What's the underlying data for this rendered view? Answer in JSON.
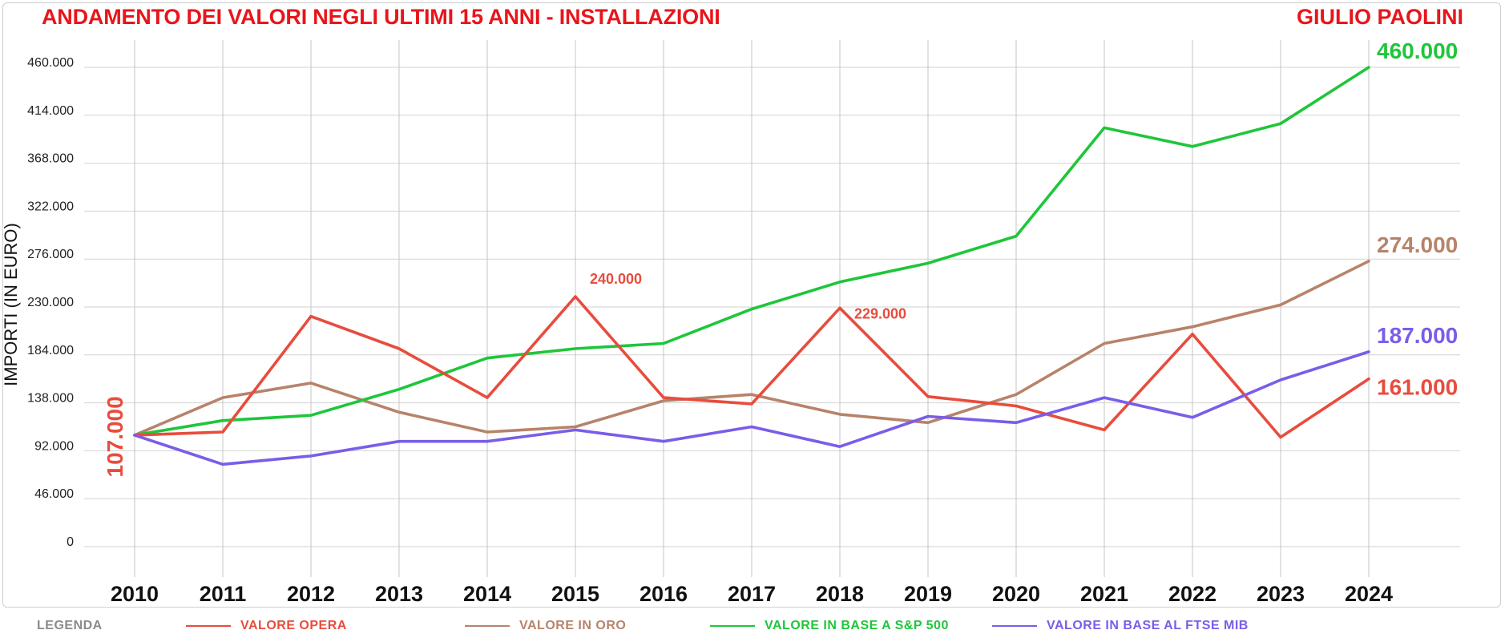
{
  "chart_data": {
    "type": "line",
    "title": "ANDAMENTO DEI VALORI NEGLI ULTIMI 15 ANNI - INSTALLAZIONI",
    "author": "GIULIO PAOLINI",
    "ylabel": "IMPORTI (IN EURO)",
    "xlabel": "",
    "x": [
      "2010",
      "2011",
      "2012",
      "2013",
      "2014",
      "2015",
      "2016",
      "2017",
      "2018",
      "2019",
      "2020",
      "2021",
      "2022",
      "2023",
      "2024"
    ],
    "yticks": [
      "0",
      "46.000",
      "92.000",
      "138.000",
      "184.000",
      "230.000",
      "276.000",
      "322.000",
      "368.000",
      "414.000",
      "460.000"
    ],
    "ylim": [
      0,
      460000
    ],
    "grid": true,
    "series": [
      {
        "name": "VALORE OPERA",
        "color": "#e84c3d",
        "values": [
          107000,
          110000,
          221000,
          190000,
          143000,
          240000,
          143000,
          137000,
          229000,
          144000,
          135000,
          112000,
          204000,
          105000,
          161000
        ]
      },
      {
        "name": "VALORE IN ORO",
        "color": "#b7836a",
        "values": [
          107000,
          143000,
          157000,
          129000,
          110000,
          115000,
          140000,
          146000,
          127000,
          119000,
          146000,
          195000,
          211000,
          232000,
          274000
        ]
      },
      {
        "name": "VALORE IN BASE A S&P 500",
        "color": "#1ec63a",
        "values": [
          107000,
          121000,
          126000,
          151000,
          181000,
          190000,
          195000,
          228000,
          254000,
          272000,
          298000,
          402000,
          384000,
          406000,
          460000
        ]
      },
      {
        "name": "VALORE IN BASE AL FTSE MIB",
        "color": "#7a5de8",
        "values": [
          107000,
          79000,
          87000,
          101000,
          101000,
          112000,
          101000,
          115000,
          96000,
          125000,
          119000,
          143000,
          124000,
          160000,
          187000
        ]
      }
    ],
    "annotations": [
      {
        "text": "107.000",
        "color": "#e84c3d",
        "series": 0,
        "index": 0,
        "style": "vertical"
      },
      {
        "text": "240.000",
        "color": "#e84c3d",
        "series": 0,
        "index": 5,
        "style": "small"
      },
      {
        "text": "229.000",
        "color": "#e84c3d",
        "series": 0,
        "index": 8,
        "style": "small"
      },
      {
        "text": "460.000",
        "color": "#1ec63a",
        "series": 2,
        "index": 14,
        "style": "end"
      },
      {
        "text": "274.000",
        "color": "#b7836a",
        "series": 1,
        "index": 14,
        "style": "end"
      },
      {
        "text": "187.000",
        "color": "#7a5de8",
        "series": 3,
        "index": 14,
        "style": "end"
      },
      {
        "text": "161.000",
        "color": "#e84c3d",
        "series": 0,
        "index": 14,
        "style": "end"
      }
    ],
    "legend_title": "LEGENDA",
    "legend_position": "bottom"
  }
}
